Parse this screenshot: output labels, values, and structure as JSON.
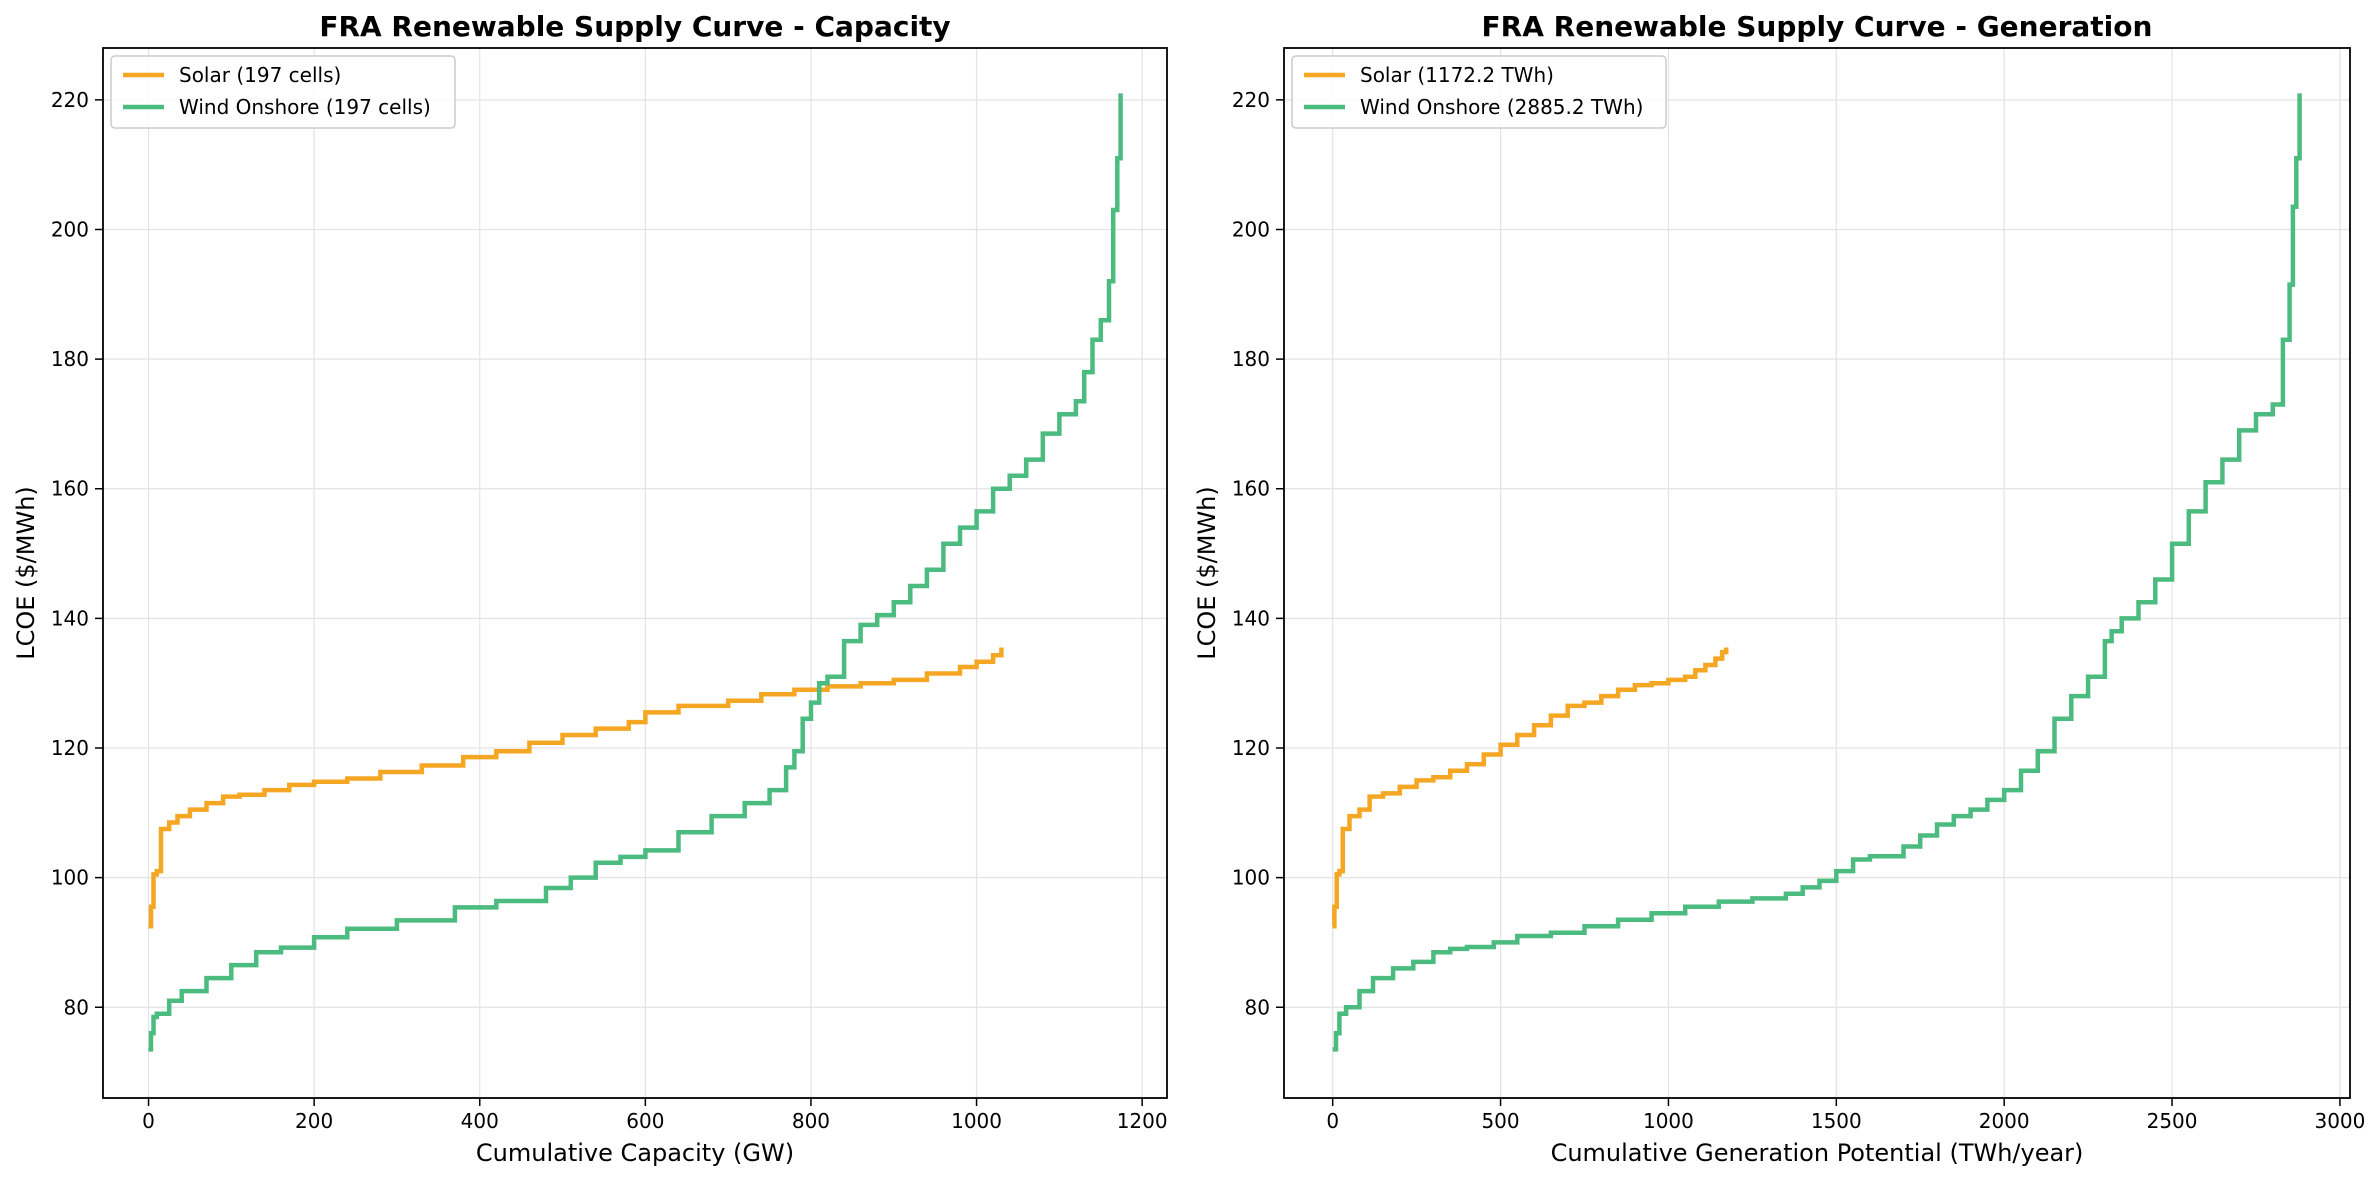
{
  "chart_data": [
    {
      "type": "line",
      "line_shape": "step",
      "title": "FRA Renewable Supply Curve - Capacity",
      "xlabel": "Cumulative Capacity (GW)",
      "ylabel": "LCOE ($/MWh)",
      "xlim": [
        -55,
        1230
      ],
      "ylim": [
        66,
        228
      ],
      "xticks": [
        0,
        200,
        400,
        600,
        800,
        1000,
        1200
      ],
      "yticks": [
        80,
        100,
        120,
        140,
        160,
        180,
        200,
        220
      ],
      "grid": true,
      "legend": "top-left",
      "series": [
        {
          "name": "Solar (197 cells)",
          "color": "#f5a623",
          "x": [
            0,
            3,
            6,
            10,
            15,
            25,
            35,
            50,
            70,
            90,
            110,
            140,
            170,
            200,
            240,
            280,
            330,
            380,
            420,
            460,
            500,
            540,
            580,
            600,
            640,
            700,
            740,
            780,
            820,
            860,
            900,
            940,
            980,
            1000,
            1020,
            1030
          ],
          "y": [
            92.5,
            95.5,
            100.5,
            101,
            107.5,
            108.5,
            109.5,
            110.5,
            111.5,
            112.5,
            112.8,
            113.5,
            114.3,
            114.8,
            115.3,
            116.3,
            117.3,
            118.6,
            119.5,
            120.8,
            122,
            123,
            124,
            125.5,
            126.5,
            127.3,
            128.3,
            129,
            129.5,
            130,
            130.5,
            131.5,
            132.5,
            133.3,
            134.3,
            135.5
          ]
        },
        {
          "name": "Wind Onshore (197 cells)",
          "color": "#4cbb7f",
          "x": [
            0,
            3,
            6,
            10,
            25,
            40,
            70,
            100,
            130,
            160,
            200,
            240,
            300,
            370,
            420,
            480,
            510,
            540,
            570,
            600,
            640,
            680,
            720,
            750,
            770,
            780,
            790,
            800,
            810,
            820,
            840,
            860,
            880,
            900,
            920,
            940,
            960,
            980,
            1000,
            1020,
            1040,
            1060,
            1080,
            1100,
            1110,
            1120,
            1130,
            1140,
            1150,
            1160,
            1165,
            1170,
            1174
          ],
          "y": [
            73.5,
            76,
            78.5,
            79,
            81,
            82.5,
            84.5,
            86.5,
            88.5,
            89.2,
            90.8,
            92.1,
            93.4,
            95.4,
            96.4,
            98.4,
            100,
            102.3,
            103.2,
            104.2,
            107,
            109.5,
            111.5,
            113.5,
            117,
            119.5,
            124.5,
            127,
            130,
            131,
            136.5,
            139,
            140.5,
            142.5,
            145,
            147.5,
            151.5,
            154,
            156.5,
            160,
            162,
            164.5,
            168.5,
            171.5,
            171.5,
            173.5,
            178,
            183,
            186,
            192,
            203,
            211,
            221
          ]
        }
      ]
    },
    {
      "type": "line",
      "line_shape": "step",
      "title": "FRA Renewable Supply Curve - Generation",
      "xlabel": "Cumulative Generation Potential (TWh/year)",
      "ylabel": "LCOE ($/MWh)",
      "xlim": [
        -145,
        3030
      ],
      "ylim": [
        66,
        228
      ],
      "xticks": [
        0,
        500,
        1000,
        1500,
        2000,
        2500,
        3000
      ],
      "yticks": [
        80,
        100,
        120,
        140,
        160,
        180,
        200,
        220
      ],
      "grid": true,
      "legend": "top-left",
      "series": [
        {
          "name": "Solar (1172.2 TWh)",
          "color": "#f5a623",
          "x": [
            0,
            5,
            12,
            20,
            30,
            50,
            80,
            110,
            150,
            200,
            250,
            300,
            350,
            400,
            450,
            500,
            550,
            600,
            650,
            700,
            750,
            800,
            850,
            900,
            950,
            1000,
            1050,
            1080,
            1110,
            1140,
            1160,
            1172
          ],
          "y": [
            92.5,
            95.5,
            100.5,
            101,
            107.5,
            109.5,
            110.5,
            112.5,
            113,
            114,
            115,
            115.5,
            116.5,
            117.5,
            119,
            120.5,
            122,
            123.5,
            125,
            126.5,
            127,
            128,
            129,
            129.7,
            130,
            130.5,
            131,
            132,
            132.8,
            133.8,
            134.8,
            135.5
          ]
        },
        {
          "name": "Wind Onshore (2885.2 TWh)",
          "color": "#4cbb7f",
          "x": [
            0,
            10,
            20,
            40,
            80,
            120,
            180,
            240,
            300,
            350,
            400,
            480,
            550,
            650,
            750,
            850,
            950,
            1050,
            1150,
            1250,
            1350,
            1400,
            1450,
            1500,
            1550,
            1600,
            1700,
            1750,
            1800,
            1850,
            1900,
            1950,
            2000,
            2050,
            2100,
            2150,
            2200,
            2250,
            2300,
            2320,
            2350,
            2400,
            2450,
            2500,
            2550,
            2600,
            2650,
            2700,
            2750,
            2800,
            2830,
            2850,
            2860,
            2870,
            2880
          ],
          "y": [
            73.5,
            76,
            79,
            80,
            82.5,
            84.5,
            86,
            87,
            88.5,
            89,
            89.3,
            90,
            91,
            91.5,
            92.5,
            93.5,
            94.5,
            95.5,
            96.3,
            96.8,
            97.5,
            98.5,
            99.5,
            101,
            102.8,
            103.3,
            104.8,
            106.5,
            108.2,
            109.5,
            110.5,
            112,
            113.5,
            116.5,
            119.5,
            124.5,
            128,
            131,
            136.5,
            138,
            140,
            142.5,
            146,
            151.5,
            156.5,
            161,
            164.5,
            169,
            171.5,
            173,
            183,
            191.5,
            203.5,
            211,
            221
          ]
        }
      ]
    }
  ]
}
